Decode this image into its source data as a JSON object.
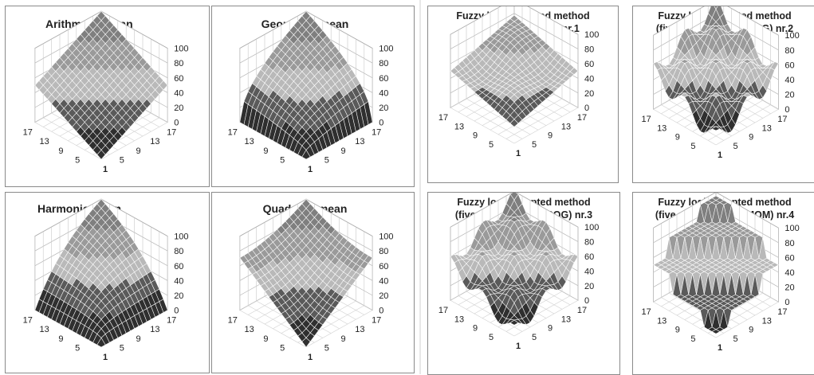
{
  "chart_data": [
    {
      "type": "surface",
      "title": "Arithmetic mean",
      "formula": "arithmetic",
      "x": [
        1,
        5,
        9,
        13,
        17
      ],
      "y": [
        1,
        5,
        9,
        13,
        17
      ],
      "z_ticks": [
        0,
        20,
        40,
        60,
        80,
        100
      ],
      "zlim": [
        0,
        100
      ],
      "bands": [
        0,
        20,
        40,
        60,
        80,
        100
      ]
    },
    {
      "type": "surface",
      "title": "Geometric mean",
      "formula": "geometric",
      "x": [
        1,
        5,
        9,
        13,
        17
      ],
      "y": [
        1,
        5,
        9,
        13,
        17
      ],
      "z_ticks": [
        0,
        20,
        40,
        60,
        80,
        100
      ],
      "zlim": [
        0,
        100
      ]
    },
    {
      "type": "surface",
      "title": "Harmonic mean",
      "formula": "harmonic",
      "x": [
        1,
        5,
        9,
        13,
        17
      ],
      "y": [
        1,
        5,
        9,
        13,
        17
      ],
      "z_ticks": [
        0,
        20,
        40,
        60,
        80,
        100
      ],
      "zlim": [
        0,
        100
      ]
    },
    {
      "type": "surface",
      "title": "Quadratic mean",
      "formula": "quadratic",
      "x": [
        1,
        5,
        9,
        13,
        17
      ],
      "y": [
        1,
        5,
        9,
        13,
        17
      ],
      "z_ticks": [
        0,
        20,
        40,
        60,
        80,
        100
      ],
      "zlim": [
        0,
        100
      ]
    },
    {
      "type": "surface",
      "title_lines": [
        "Fuzzy logic adapted method",
        "(tripartite set, COG) nr.1"
      ],
      "formula": "fuzzy3",
      "x": [
        1,
        5,
        9,
        13,
        17
      ],
      "y": [
        1,
        5,
        9,
        13,
        17
      ],
      "z_ticks": [
        0,
        20,
        40,
        60,
        80,
        100
      ],
      "zlim": [
        0,
        100
      ]
    },
    {
      "type": "surface",
      "title_lines": [
        "Fuzzy logic adapted method",
        "(five proportioned, COG) nr.2"
      ],
      "formula": "fuzzy5a",
      "x": [
        1,
        5,
        9,
        13,
        17
      ],
      "y": [
        1,
        5,
        9,
        13,
        17
      ],
      "z_ticks": [
        0,
        20,
        40,
        60,
        80,
        100
      ],
      "zlim": [
        0,
        100
      ]
    },
    {
      "type": "surface",
      "title_lines": [
        "Fuzzy logic adapted method",
        "(five proportioned, COG) nr.3"
      ],
      "formula": "fuzzy5b",
      "x": [
        1,
        5,
        9,
        13,
        17
      ],
      "y": [
        1,
        5,
        9,
        13,
        17
      ],
      "z_ticks": [
        0,
        20,
        40,
        60,
        80,
        100
      ],
      "zlim": [
        0,
        100
      ]
    },
    {
      "type": "surface",
      "title_lines": [
        "Fuzzy logic adapted method",
        "(five proportioned, MOM) nr.4"
      ],
      "formula": "mom",
      "x": [
        1,
        5,
        9,
        13,
        17
      ],
      "y": [
        1,
        5,
        9,
        13,
        17
      ],
      "z_ticks": [
        0,
        20,
        40,
        60,
        80,
        100
      ],
      "zlim": [
        0,
        100
      ]
    }
  ],
  "band_colors": [
    "#2f2f2f",
    "#5a5a5a",
    "#b9b9b9",
    "#9a9a9a",
    "#7f7f7f"
  ]
}
